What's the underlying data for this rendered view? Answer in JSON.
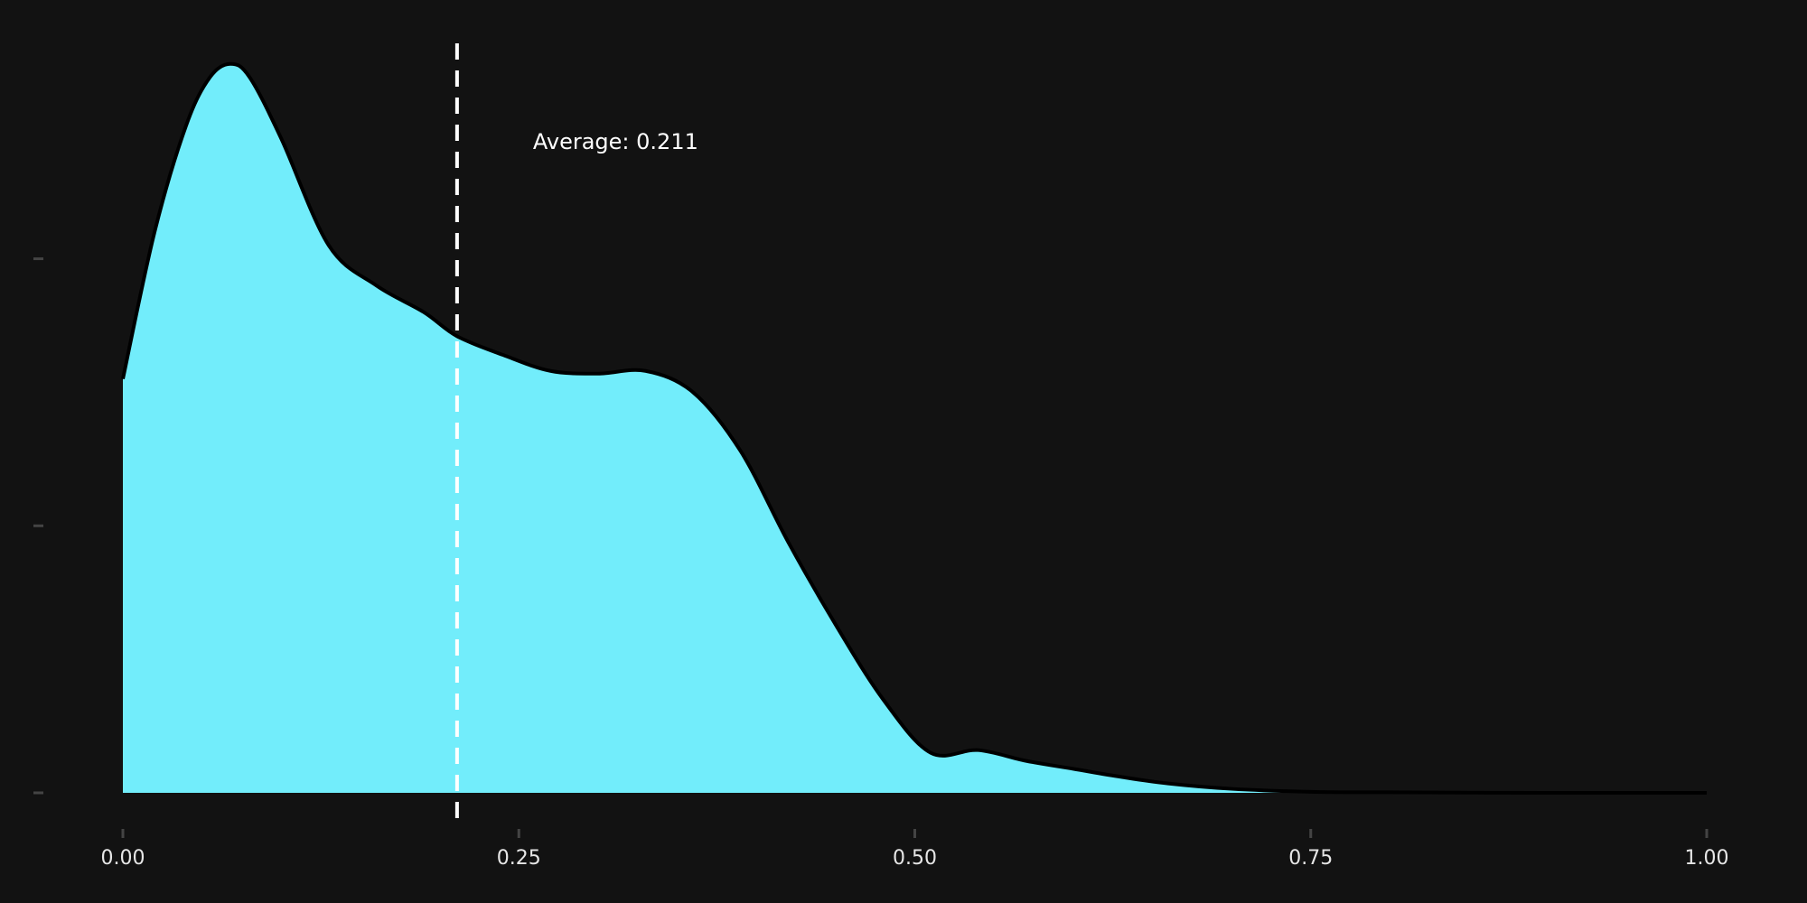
{
  "chart_data": {
    "type": "area",
    "title": "",
    "xlabel": "",
    "ylabel": "",
    "xlim": [
      0,
      1
    ],
    "ylim": [
      0,
      2.8
    ],
    "grid": false,
    "x_ticks": [
      0,
      0.25,
      0.5,
      0.75,
      1
    ],
    "x_tick_labels": [
      "0.00",
      "0.25",
      "0.50",
      "0.75",
      "1.00"
    ],
    "y_ticks": [
      0,
      1,
      2
    ],
    "series": [
      {
        "x": [
          0.0,
          0.02,
          0.04,
          0.055,
          0.068,
          0.08,
          0.1,
          0.13,
          0.16,
          0.19,
          0.211,
          0.24,
          0.27,
          0.3,
          0.33,
          0.36,
          0.39,
          0.42,
          0.45,
          0.48,
          0.51,
          0.54,
          0.57,
          0.6,
          0.63,
          0.66,
          0.7,
          0.75,
          0.8,
          0.9,
          1.0
        ],
        "y": [
          1.55,
          2.1,
          2.5,
          2.68,
          2.73,
          2.68,
          2.45,
          2.05,
          1.9,
          1.8,
          1.71,
          1.64,
          1.58,
          1.57,
          1.58,
          1.5,
          1.28,
          0.94,
          0.63,
          0.35,
          0.15,
          0.16,
          0.12,
          0.09,
          0.06,
          0.035,
          0.015,
          0.004,
          0.002,
          0.0,
          0.0
        ]
      }
    ],
    "mean": {
      "value": 0.211,
      "label": "Average: 0.211"
    },
    "colors": {
      "background": "#121212",
      "fill": "#72edfb",
      "line": "#000000",
      "mean_line": "#ffffff",
      "tick": "#444444",
      "text": "#e6e6e6"
    }
  }
}
